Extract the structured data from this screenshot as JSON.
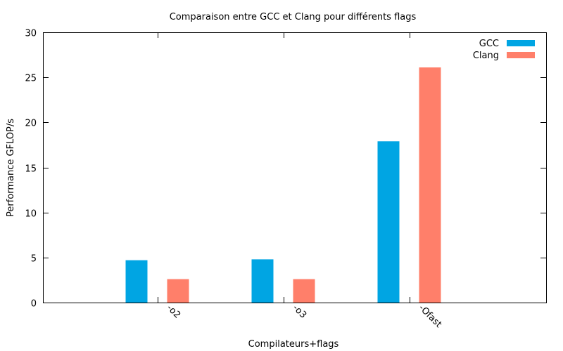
{
  "chart_data": {
    "type": "bar",
    "title": "Comparaison entre GCC et Clang pour différents flags",
    "xlabel": "Compilateurs+flags",
    "ylabel": "Performance GFLOP/s",
    "categories": [
      "-o2",
      "-o3",
      "-Ofast"
    ],
    "series": [
      {
        "name": "GCC",
        "color": "#00a5e3",
        "values": [
          4.7,
          4.8,
          17.9
        ]
      },
      {
        "name": "Clang",
        "color": "#ff7f6a",
        "values": [
          2.6,
          2.6,
          26.1
        ]
      }
    ],
    "ylim": [
      0,
      30
    ],
    "yticks": [
      0,
      5,
      10,
      15,
      20,
      25,
      30
    ],
    "grid": false,
    "legend": "top-right"
  }
}
